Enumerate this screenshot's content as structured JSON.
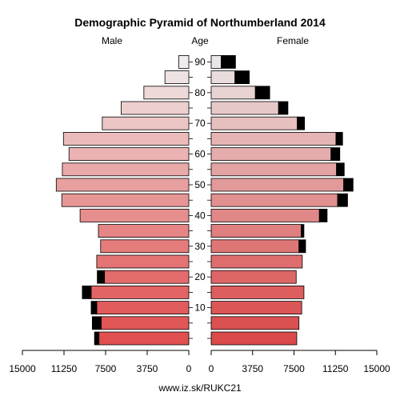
{
  "chart_data": {
    "type": "bar",
    "orientation": "horizontal-population-pyramid",
    "title": "Demographic Pyramid of Northumberland 2014",
    "left_label": "Male",
    "center_label": "Age",
    "right_label": "Female",
    "footer": "www.iz.sk/RUKC21",
    "age_tick_labels": [
      "10",
      "20",
      "30",
      "40",
      "50",
      "60",
      "70",
      "80",
      "90"
    ],
    "axis_tick_labels_left": [
      "15000",
      "11250",
      "7500",
      "3750",
      "0"
    ],
    "axis_tick_labels_right": [
      "0",
      "3750",
      "7500",
      "11250",
      "15000"
    ],
    "xlim": [
      0,
      15000
    ],
    "age_groups_start": [
      0,
      5,
      10,
      15,
      20,
      25,
      30,
      35,
      40,
      45,
      50,
      55,
      60,
      65,
      70,
      75,
      80,
      85,
      90
    ],
    "series": [
      {
        "name": "Male",
        "values": [
          8100,
          7900,
          8300,
          8800,
          7600,
          8300,
          7950,
          8150,
          9800,
          11450,
          11950,
          11400,
          10800,
          11300,
          7800,
          6100,
          4050,
          2150,
          900
        ],
        "extra": [
          400,
          800,
          500,
          800,
          650,
          0,
          0,
          0,
          0,
          0,
          0,
          0,
          0,
          0,
          0,
          0,
          0,
          0,
          0
        ]
      },
      {
        "name": "Female",
        "values": [
          7750,
          7950,
          8200,
          8400,
          7700,
          8250,
          7950,
          8150,
          9800,
          11450,
          12000,
          11350,
          10850,
          11300,
          7800,
          6100,
          4000,
          2150,
          900
        ],
        "extra": [
          0,
          0,
          0,
          0,
          0,
          0,
          600,
          250,
          700,
          900,
          850,
          700,
          800,
          600,
          650,
          850,
          1300,
          1300,
          1300
        ]
      }
    ]
  }
}
